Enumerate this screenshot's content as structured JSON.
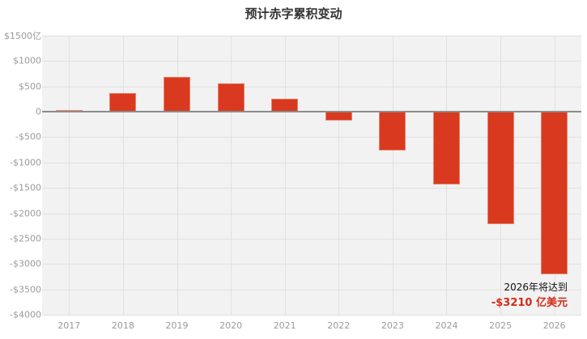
{
  "chart_data": {
    "type": "bar",
    "title": "预计赤字累积变动",
    "xlabel": "",
    "ylabel": "",
    "categories": [
      "2017",
      "2018",
      "2019",
      "2020",
      "2021",
      "2022",
      "2023",
      "2024",
      "2025",
      "2026"
    ],
    "values": [
      30,
      370,
      680,
      560,
      260,
      -180,
      -760,
      -1430,
      -2220,
      -3210
    ],
    "units": "亿美元",
    "ylim": [
      -4000,
      1500
    ],
    "yticks": [
      1500,
      1000,
      500,
      0,
      -500,
      -1000,
      -1500,
      -2000,
      -2500,
      -3000,
      -3500,
      -4000
    ],
    "ytick_labels": [
      "$1500亿",
      "$1000",
      "$500",
      "0",
      "-$500",
      "-$1000",
      "-$1500",
      "-$2000",
      "-$2500",
      "-$3000",
      "-$3500",
      "-$4000"
    ],
    "grid": true,
    "bar_color": "#d9391e",
    "annotation": {
      "line1": "2026年将达到",
      "line2": "-$3210 亿美元",
      "color": "#d42a1a"
    }
  },
  "title": "预计赤字累积变动"
}
